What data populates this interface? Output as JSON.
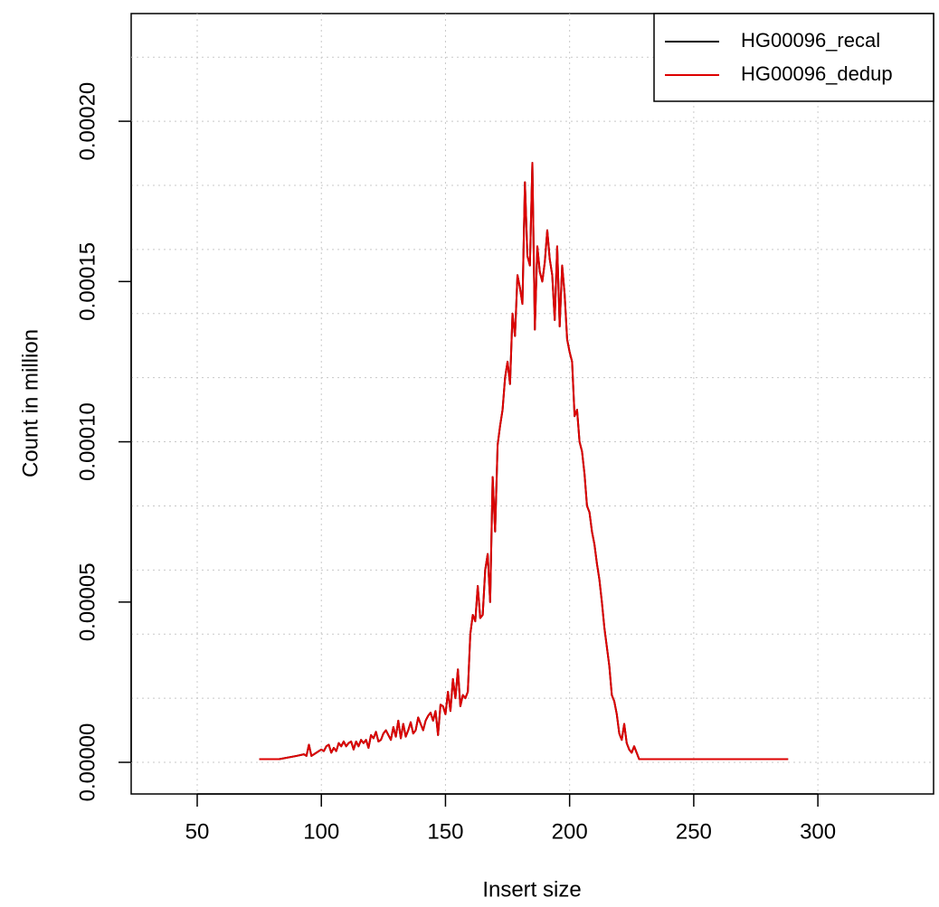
{
  "chart_data": {
    "type": "line",
    "xlabel": "Insert size",
    "ylabel": "Count in million",
    "x": [
      75,
      83,
      90,
      93,
      94,
      95,
      96,
      98,
      100,
      101,
      102,
      103,
      104,
      105,
      106,
      107,
      108,
      109,
      110,
      111,
      112,
      113,
      114,
      115,
      116,
      117,
      118,
      119,
      120,
      121,
      122,
      123,
      124,
      125,
      126,
      127,
      128,
      129,
      130,
      131,
      132,
      133,
      134,
      135,
      136,
      137,
      138,
      139,
      140,
      141,
      142,
      143,
      144,
      145,
      146,
      147,
      148,
      149,
      150,
      151,
      152,
      153,
      154,
      155,
      156,
      157,
      158,
      159,
      160,
      161,
      162,
      163,
      164,
      165,
      166,
      167,
      168,
      169,
      170,
      171,
      172,
      173,
      174,
      175,
      176,
      177,
      178,
      179,
      180,
      181,
      182,
      183,
      184,
      185,
      186,
      187,
      188,
      189,
      190,
      191,
      192,
      193,
      194,
      195,
      196,
      197,
      198,
      199,
      200,
      201,
      202,
      203,
      204,
      205,
      206,
      207,
      208,
      209,
      210,
      211,
      212,
      213,
      214,
      215,
      216,
      217,
      218,
      219,
      220,
      221,
      222,
      223,
      224,
      225,
      226,
      227,
      228,
      233,
      288
    ],
    "series": [
      {
        "name": "HG00096_recal",
        "color": "#000000",
        "values": [
          1e-06,
          1e-06,
          2e-06,
          2.5e-06,
          2e-06,
          5.5e-06,
          2e-06,
          3e-06,
          4e-06,
          3.5e-06,
          5e-06,
          5.5e-06,
          3e-06,
          4.5e-06,
          3.5e-06,
          6e-06,
          5e-06,
          6.5e-06,
          5e-06,
          6e-06,
          6.5e-06,
          4e-06,
          6.5e-06,
          5e-06,
          7e-06,
          6e-06,
          7e-06,
          4.5e-06,
          8.5e-06,
          7.5e-06,
          9.5e-06,
          6.5e-06,
          7e-06,
          9e-06,
          1e-05,
          8.5e-06,
          7e-06,
          1.1e-05,
          8e-06,
          1.3e-05,
          7.5e-06,
          1.2e-05,
          8e-06,
          1e-05,
          1.25e-05,
          9e-06,
          1e-05,
          1.4e-05,
          1.2e-05,
          1e-05,
          1.3e-05,
          1.45e-05,
          1.55e-05,
          1.3e-05,
          1.6e-05,
          8.5e-06,
          1.8e-05,
          1.75e-05,
          1.5e-05,
          2.2e-05,
          1.6e-05,
          2.6e-05,
          2e-05,
          2.9e-05,
          1.75e-05,
          2.1e-05,
          2e-05,
          2.2e-05,
          4e-05,
          4.6e-05,
          4.4e-05,
          5.5e-05,
          4.5e-05,
          4.6e-05,
          6e-05,
          6.5e-05,
          5e-05,
          8.9e-05,
          7.2e-05,
          9.9e-05,
          0.000105,
          0.00011,
          0.00012,
          0.000125,
          0.000118,
          0.00014,
          0.000133,
          0.000152,
          0.000148,
          0.000143,
          0.000181,
          0.000158,
          0.000155,
          0.000187,
          0.000135,
          0.000161,
          0.000153,
          0.00015,
          0.000156,
          0.000166,
          0.000157,
          0.000152,
          0.000138,
          0.000161,
          0.000136,
          0.000155,
          0.000146,
          0.000132,
          0.000128,
          0.000125,
          0.000108,
          0.00011,
          0.0001,
          9.7e-05,
          9e-05,
          8e-05,
          7.8e-05,
          7.2e-05,
          6.8e-05,
          6.2e-05,
          5.7e-05,
          5e-05,
          4.2e-05,
          3.6e-05,
          3e-05,
          2.1e-05,
          1.9e-05,
          1.5e-05,
          9e-06,
          7e-06,
          1.2e-05,
          6e-06,
          4e-06,
          3e-06,
          5e-06,
          3e-06,
          1e-06,
          1e-06,
          1e-06
        ]
      },
      {
        "name": "HG00096_dedup",
        "color": "#dd0000",
        "values": [
          1e-06,
          1e-06,
          2e-06,
          2.5e-06,
          2e-06,
          5.5e-06,
          2e-06,
          3e-06,
          4e-06,
          3.5e-06,
          5e-06,
          5.5e-06,
          3e-06,
          4.5e-06,
          3.5e-06,
          6e-06,
          5e-06,
          6.5e-06,
          5e-06,
          6e-06,
          6.5e-06,
          4e-06,
          6.5e-06,
          5e-06,
          7e-06,
          6e-06,
          7e-06,
          4.5e-06,
          8.5e-06,
          7.5e-06,
          9.5e-06,
          6.5e-06,
          7e-06,
          9e-06,
          1e-05,
          8.5e-06,
          7e-06,
          1.1e-05,
          8e-06,
          1.3e-05,
          7.5e-06,
          1.2e-05,
          8e-06,
          1e-05,
          1.25e-05,
          9e-06,
          1e-05,
          1.4e-05,
          1.2e-05,
          1e-05,
          1.3e-05,
          1.45e-05,
          1.55e-05,
          1.3e-05,
          1.6e-05,
          8.5e-06,
          1.8e-05,
          1.75e-05,
          1.5e-05,
          2.2e-05,
          1.6e-05,
          2.6e-05,
          2e-05,
          2.9e-05,
          1.75e-05,
          2.1e-05,
          2e-05,
          2.2e-05,
          4e-05,
          4.6e-05,
          4.4e-05,
          5.5e-05,
          4.5e-05,
          4.6e-05,
          6e-05,
          6.5e-05,
          5e-05,
          8.9e-05,
          7.2e-05,
          9.9e-05,
          0.000105,
          0.00011,
          0.00012,
          0.000125,
          0.000118,
          0.00014,
          0.000133,
          0.000152,
          0.000148,
          0.000143,
          0.000181,
          0.000158,
          0.000155,
          0.000187,
          0.000135,
          0.000161,
          0.000153,
          0.00015,
          0.000156,
          0.000166,
          0.000157,
          0.000152,
          0.000138,
          0.000161,
          0.000136,
          0.000155,
          0.000146,
          0.000132,
          0.000128,
          0.000125,
          0.000108,
          0.00011,
          0.0001,
          9.7e-05,
          9e-05,
          8e-05,
          7.8e-05,
          7.2e-05,
          6.8e-05,
          6.2e-05,
          5.7e-05,
          5e-05,
          4.2e-05,
          3.6e-05,
          3e-05,
          2.1e-05,
          1.9e-05,
          1.5e-05,
          9e-06,
          7e-06,
          1.2e-05,
          6e-06,
          4e-06,
          3e-06,
          5e-06,
          3e-06,
          1e-06,
          1e-06,
          1e-06
        ]
      }
    ],
    "xlim": [
      23.4,
      346.6
    ],
    "ylim": [
      -9.87e-06,
      0.0002336
    ],
    "xticks": [
      50,
      100,
      150,
      200,
      250,
      300
    ],
    "yticks": [
      {
        "value": 0,
        "label": "0.00000"
      },
      {
        "value": 5e-05,
        "label": "0.00005"
      },
      {
        "value": 0.0001,
        "label": "0.00010"
      },
      {
        "value": 0.00015,
        "label": "0.00015"
      },
      {
        "value": 0.0002,
        "label": "0.00020"
      }
    ],
    "y_gridlines": [
      0,
      2e-05,
      4e-05,
      6e-05,
      8e-05,
      0.0001,
      0.00012,
      0.00014,
      0.00016,
      0.00018,
      0.0002,
      0.00022
    ],
    "grid": true,
    "legend_position": "top-right"
  }
}
